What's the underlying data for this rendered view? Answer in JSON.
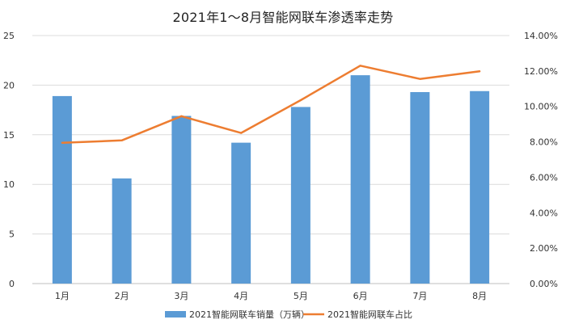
{
  "chart_data": {
    "type": "bar",
    "title": "2021年1～8月智能网联车渗透率走势",
    "categories": [
      "1月",
      "2月",
      "3月",
      "4月",
      "5月",
      "6月",
      "7月",
      "8月"
    ],
    "series": [
      {
        "name": "2021智能网联车销量（万辆）",
        "type": "bar",
        "axis": "left",
        "color": "#5b9bd5",
        "values": [
          18.9,
          10.6,
          16.9,
          14.2,
          17.8,
          21.0,
          19.3,
          19.4
        ]
      },
      {
        "name": "2021智能网联车占比",
        "type": "line",
        "axis": "right",
        "color": "#ed7d31",
        "values": [
          0.0795,
          0.0808,
          0.0945,
          0.085,
          0.1035,
          0.123,
          0.1155,
          0.1198
        ]
      }
    ],
    "y_left": {
      "lim": [
        0,
        25
      ],
      "ticks": [
        0,
        5,
        10,
        15,
        20,
        25
      ],
      "tick_labels": [
        "0",
        "5",
        "10",
        "15",
        "20",
        "25"
      ]
    },
    "y_right": {
      "lim": [
        0,
        0.14
      ],
      "ticks": [
        0,
        0.02,
        0.04,
        0.06,
        0.08,
        0.1,
        0.12,
        0.14
      ],
      "tick_labels": [
        "0.00%",
        "2.00%",
        "4.00%",
        "6.00%",
        "8.00%",
        "10.00%",
        "12.00%",
        "14.00%"
      ]
    },
    "grid": true,
    "legend_position": "bottom"
  }
}
